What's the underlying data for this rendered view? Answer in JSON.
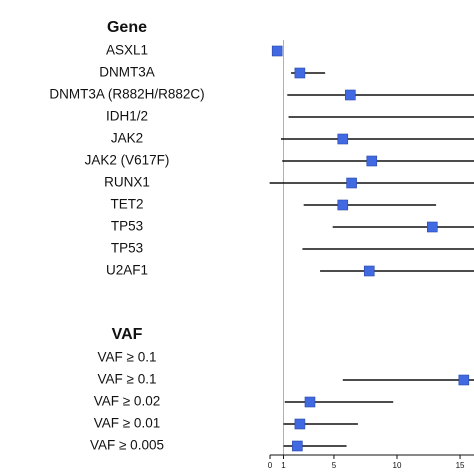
{
  "chart_data": {
    "type": "forest",
    "title": "",
    "xlabel": "",
    "ylabel": "",
    "reference_line": 1,
    "x_ticks": [
      0,
      1,
      5,
      10,
      15
    ],
    "xlim": [
      0,
      16
    ],
    "marker_color": "#4169e1",
    "sections": [
      {
        "header": "Gene",
        "rows": [
          {
            "label": "ASXL1",
            "est": 0.5,
            "lo": 0.2,
            "hi": 0.9
          },
          {
            "label": "DNMT3A",
            "est": 2.3,
            "lo": 1.6,
            "hi": 4.3
          },
          {
            "label": "DNMT3A (R882H/R882C)",
            "est": 6.3,
            "lo": 1.3,
            "hi": null
          },
          {
            "label": "IDH1/2",
            "est": null,
            "lo": 1.4,
            "hi": null
          },
          {
            "label": "JAK2",
            "est": 5.7,
            "lo": 0.8,
            "hi": null
          },
          {
            "label": "JAK2 (V617F)",
            "est": 8.0,
            "lo": 0.9,
            "hi": null
          },
          {
            "label": "RUNX1",
            "est": 6.4,
            "lo": -0.1,
            "hi": null
          },
          {
            "label": "TET2",
            "est": 5.7,
            "lo": 2.6,
            "hi": 13.1
          },
          {
            "label": "TP53",
            "est": 12.8,
            "lo": 4.9,
            "hi": null
          },
          {
            "label": "TP53",
            "est": null,
            "lo": 2.5,
            "hi": null
          },
          {
            "label": "U2AF1",
            "est": 7.8,
            "lo": 3.9,
            "hi": null
          }
        ]
      },
      {
        "header": "VAF",
        "rows": [
          {
            "label": "VAF ≥ 0.1",
            "est": null,
            "lo": null,
            "hi": null
          },
          {
            "label": "VAF ≥ 0.1",
            "est": 15.3,
            "lo": 5.7,
            "hi": null
          },
          {
            "label": "VAF ≥ 0.02",
            "est": 3.1,
            "lo": 1.1,
            "hi": 9.7
          },
          {
            "label": "VAF ≥ 0.01",
            "est": 2.3,
            "lo": 1.0,
            "hi": 6.9
          },
          {
            "label": "VAF ≥ 0.005",
            "est": 2.1,
            "lo": 1.0,
            "hi": 6.0
          }
        ]
      }
    ]
  }
}
